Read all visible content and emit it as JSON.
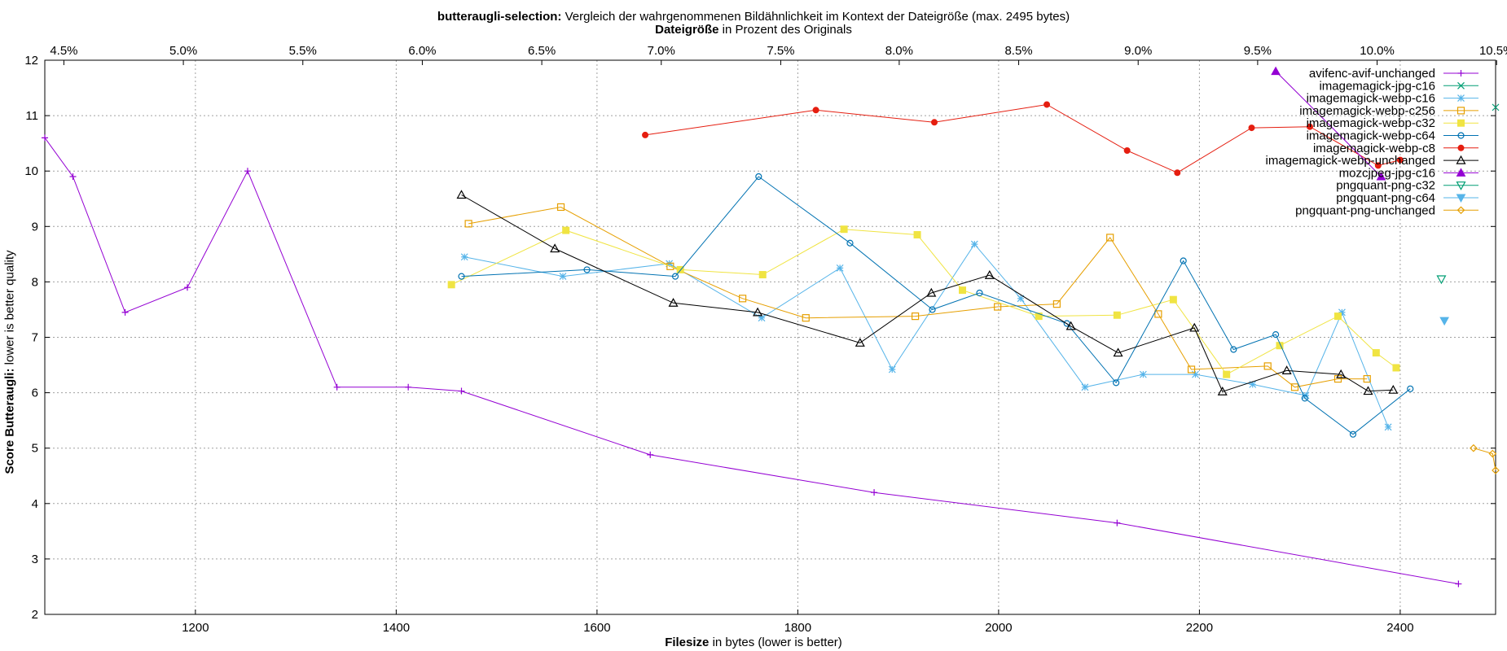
{
  "chart_data": {
    "type": "line",
    "title": {
      "bold": "butteraugli-selection:",
      "rest": "Vergleich der wahrgenommenen Bildähnlichkeit im Kontext der Dateigröße (max. 2495 bytes)"
    },
    "x2label": {
      "bold": "Dateigröße",
      "rest": "in Prozent des Originals"
    },
    "xlabel": {
      "bold": "Filesize",
      "rest": "in bytes (lower is better)"
    },
    "ylabel": {
      "bold": "Score Butteraugli:",
      "rest": "lower is better quality"
    },
    "xlim": [
      1050,
      2495
    ],
    "ylim": [
      2,
      12
    ],
    "grid": true,
    "legend_position": "top-right",
    "x_ticks": [
      1200,
      1400,
      1600,
      1800,
      2000,
      2200,
      2400
    ],
    "y_ticks": [
      2,
      3,
      4,
      5,
      6,
      7,
      8,
      9,
      10,
      11,
      12
    ],
    "x2_ticks": [
      "4.5%",
      "5.0%",
      "5.5%",
      "6.0%",
      "6.5%",
      "7.0%",
      "7.5%",
      "8.0%",
      "8.5%",
      "9.0%",
      "9.5%",
      "10.0%",
      "10.5%"
    ],
    "x2_tick_bytes": [
      1069,
      1188,
      1307,
      1426,
      1545,
      1664,
      1783,
      1901,
      2020,
      2139,
      2258,
      2377,
      2496
    ],
    "series": [
      {
        "name": "avifenc-avif-unchanged",
        "color": "#9400d3",
        "marker": "plus",
        "points": [
          [
            1050,
            10.6
          ],
          [
            1078,
            9.9
          ],
          [
            1130,
            7.45
          ],
          [
            1192,
            7.9
          ],
          [
            1252,
            10.0
          ],
          [
            1341,
            6.1
          ],
          [
            1412,
            6.1
          ],
          [
            1465,
            6.03
          ],
          [
            1653,
            4.88
          ],
          [
            1876,
            4.2
          ],
          [
            2118,
            3.65
          ],
          [
            2458,
            2.55
          ]
        ]
      },
      {
        "name": "imagemagick-jpg-c16",
        "color": "#009e73",
        "marker": "x",
        "points": [
          [
            2495,
            11.15
          ]
        ]
      },
      {
        "name": "imagemagick-webp-c16",
        "color": "#56b4e9",
        "marker": "star",
        "points": [
          [
            1468,
            8.45
          ],
          [
            1566,
            8.1
          ],
          [
            1672,
            8.33
          ],
          [
            1764,
            7.35
          ],
          [
            1842,
            8.25
          ],
          [
            1894,
            6.42
          ],
          [
            1976,
            8.68
          ],
          [
            2022,
            7.7
          ],
          [
            2086,
            6.1
          ],
          [
            2144,
            6.33
          ],
          [
            2196,
            6.33
          ],
          [
            2253,
            6.15
          ],
          [
            2306,
            5.95
          ],
          [
            2342,
            7.45
          ],
          [
            2388,
            5.38
          ]
        ]
      },
      {
        "name": "imagemagick-webp-c256",
        "color": "#e69f00",
        "marker": "square-open",
        "points": [
          [
            1472,
            9.05
          ],
          [
            1564,
            9.35
          ],
          [
            1673,
            8.28
          ],
          [
            1745,
            7.7
          ],
          [
            1808,
            7.35
          ],
          [
            1917,
            7.38
          ],
          [
            1999,
            7.55
          ],
          [
            2058,
            7.6
          ],
          [
            2111,
            8.8
          ],
          [
            2159,
            7.42
          ],
          [
            2192,
            6.42
          ],
          [
            2268,
            6.48
          ],
          [
            2295,
            6.1
          ],
          [
            2338,
            6.25
          ],
          [
            2367,
            6.25
          ]
        ]
      },
      {
        "name": "imagemagick-webp-c32",
        "color": "#f0e442",
        "marker": "square-filled",
        "points": [
          [
            1455,
            7.95
          ],
          [
            1569,
            8.93
          ],
          [
            1683,
            8.22
          ],
          [
            1765,
            8.13
          ],
          [
            1846,
            8.95
          ],
          [
            1919,
            8.85
          ],
          [
            1964,
            7.85
          ],
          [
            2040,
            7.38
          ],
          [
            2118,
            7.4
          ],
          [
            2174,
            7.68
          ],
          [
            2227,
            6.33
          ],
          [
            2280,
            6.85
          ],
          [
            2338,
            7.38
          ],
          [
            2376,
            6.72
          ],
          [
            2396,
            6.45
          ]
        ]
      },
      {
        "name": "imagemagick-webp-c64",
        "color": "#0072b2",
        "marker": "circle-open",
        "points": [
          [
            1465,
            8.1
          ],
          [
            1590,
            8.22
          ],
          [
            1678,
            8.1
          ],
          [
            1761,
            9.9
          ],
          [
            1852,
            8.7
          ],
          [
            1934,
            7.5
          ],
          [
            1981,
            7.8
          ],
          [
            2068,
            7.25
          ],
          [
            2117,
            6.18
          ],
          [
            2184,
            8.38
          ],
          [
            2234,
            6.78
          ],
          [
            2276,
            7.05
          ],
          [
            2305,
            5.9
          ],
          [
            2353,
            5.25
          ],
          [
            2410,
            6.07
          ]
        ]
      },
      {
        "name": "imagemagick-webp-c8",
        "color": "#e51e10",
        "marker": "circle-filled",
        "points": [
          [
            1648,
            10.65
          ],
          [
            1818,
            11.1
          ],
          [
            1936,
            10.88
          ],
          [
            2048,
            11.2
          ],
          [
            2128,
            10.37
          ],
          [
            2178,
            9.97
          ],
          [
            2252,
            10.78
          ],
          [
            2310,
            10.8
          ],
          [
            2378,
            10.1
          ],
          [
            2400,
            10.2
          ]
        ]
      },
      {
        "name": "imagemagick-webp-unchanged",
        "color": "#000000",
        "marker": "triangle-open",
        "points": [
          [
            1465,
            9.57
          ],
          [
            1558,
            8.6
          ],
          [
            1676,
            7.62
          ],
          [
            1760,
            7.45
          ],
          [
            1862,
            6.9
          ],
          [
            1933,
            7.8
          ],
          [
            1991,
            8.12
          ],
          [
            2072,
            7.2
          ],
          [
            2119,
            6.72
          ],
          [
            2195,
            7.17
          ],
          [
            2223,
            6.02
          ],
          [
            2287,
            6.4
          ],
          [
            2341,
            6.33
          ],
          [
            2368,
            6.03
          ],
          [
            2393,
            6.05
          ]
        ]
      },
      {
        "name": "mozcjpeg-jpg-c16",
        "color": "#9400d3",
        "marker": "triangle-filled",
        "points": [
          [
            2276,
            11.8
          ],
          [
            2381,
            9.9
          ]
        ]
      },
      {
        "name": "pngquant-png-c32",
        "color": "#009e73",
        "marker": "triangle-down-open",
        "points": [
          [
            2441,
            8.05
          ]
        ]
      },
      {
        "name": "pngquant-png-c64",
        "color": "#56b4e9",
        "marker": "triangle-down-filled",
        "points": [
          [
            2444,
            7.3
          ]
        ]
      },
      {
        "name": "pngquant-png-unchanged",
        "color": "#e69f00",
        "marker": "diamond-open",
        "points": [
          [
            2473,
            5.0
          ],
          [
            2492,
            4.9
          ],
          [
            2495,
            4.6
          ]
        ]
      }
    ]
  }
}
